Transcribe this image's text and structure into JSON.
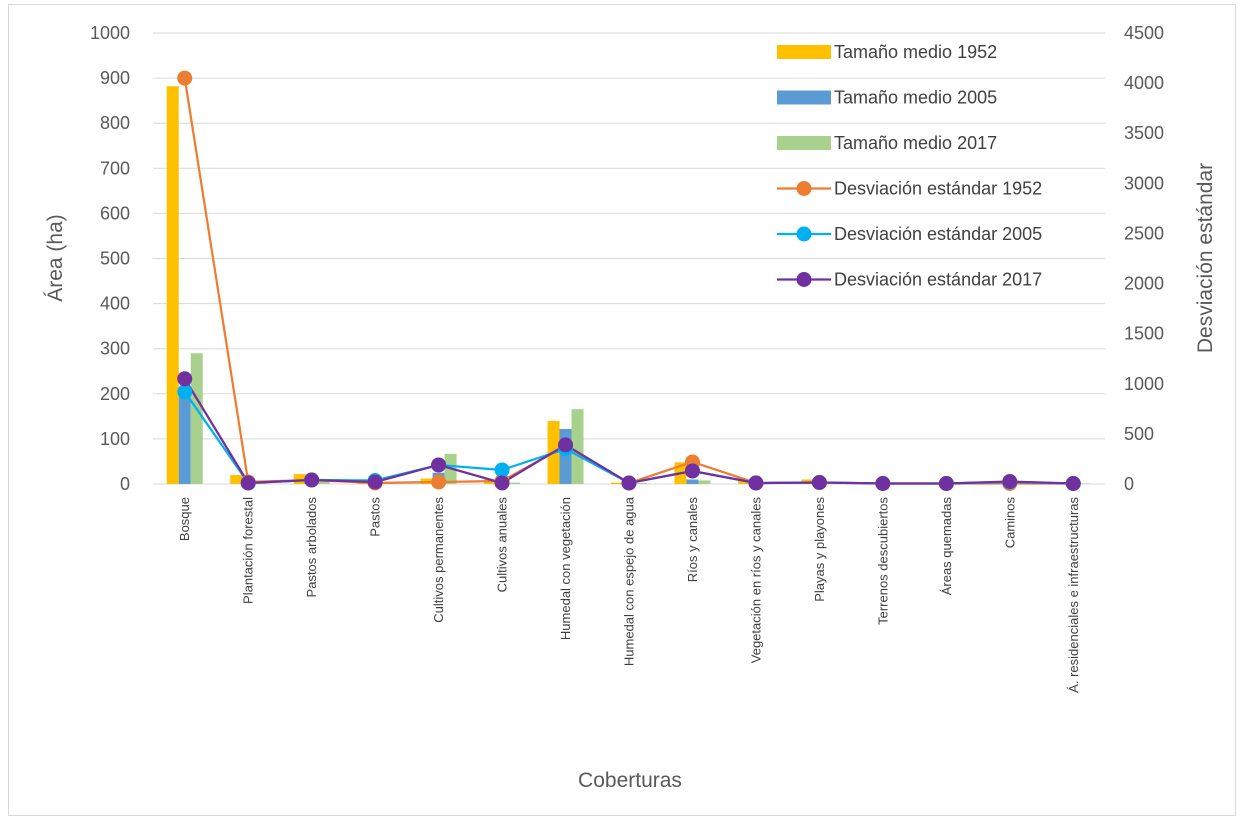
{
  "chart_data": {
    "type": "bar",
    "title": "",
    "xlabel": "Coberturas",
    "ylabel": "Área (ha)",
    "y2label": "Desviación estándar",
    "ylim": [
      0,
      1000
    ],
    "y2lim": [
      0,
      4500
    ],
    "yticks": [
      "0",
      "100",
      "200",
      "300",
      "400",
      "500",
      "600",
      "700",
      "800",
      "900",
      "1000"
    ],
    "y2ticks": [
      "0",
      "500",
      "1000",
      "1500",
      "2000",
      "2500",
      "3000",
      "3500",
      "4000",
      "4500"
    ],
    "grid": true,
    "legend_position": "top-right",
    "categories": [
      "Bosque",
      "Plantación forestal",
      "Pastos arbolados",
      "Pastos",
      "Cultivos permanentes",
      "Cultivos anuales",
      "Humedal con vegetación",
      "Humedal con espejo de agua",
      "Ríos y canales",
      "Vegetación en ríos y canales",
      "Playas y playones",
      "Terrenos descubiertos",
      "Áreas quemadas",
      "Caminos",
      "Á. residenciales e infraestructuras"
    ],
    "series": [
      {
        "name": "Tamaño medio 1952",
        "kind": "bar",
        "axis": "left",
        "color": "#FFC000",
        "values": [
          882,
          20,
          22,
          4,
          12,
          10,
          140,
          3,
          48,
          7,
          10,
          2,
          1,
          2,
          1
        ]
      },
      {
        "name": "Tamaño medio 2005",
        "kind": "bar",
        "axis": "left",
        "color": "#5B9BD5",
        "values": [
          205,
          3,
          12,
          8,
          25,
          18,
          122,
          2,
          10,
          5,
          3,
          1,
          1,
          1,
          1
        ]
      },
      {
        "name": "Tamaño medio 2017",
        "kind": "bar",
        "axis": "left",
        "color": "#A9D18E",
        "values": [
          290,
          3,
          10,
          3,
          67,
          3,
          166,
          2,
          8,
          3,
          3,
          1,
          1,
          3,
          1
        ]
      },
      {
        "name": "Desviación estándar 1952",
        "kind": "line",
        "axis": "right",
        "color": "#ED7D31",
        "values": [
          4050,
          20,
          40,
          10,
          20,
          30,
          380,
          10,
          220,
          10,
          15,
          5,
          5,
          5,
          5
        ]
      },
      {
        "name": "Desviación estándar 2005",
        "kind": "line",
        "axis": "right",
        "color": "#00B0F0",
        "values": [
          920,
          10,
          40,
          35,
          190,
          140,
          350,
          10,
          130,
          10,
          15,
          5,
          5,
          20,
          5
        ]
      },
      {
        "name": "Desviación estándar 2017",
        "kind": "line",
        "axis": "right",
        "color": "#7030A0",
        "values": [
          1050,
          10,
          40,
          20,
          190,
          10,
          390,
          10,
          130,
          10,
          15,
          5,
          5,
          25,
          5
        ]
      }
    ]
  }
}
